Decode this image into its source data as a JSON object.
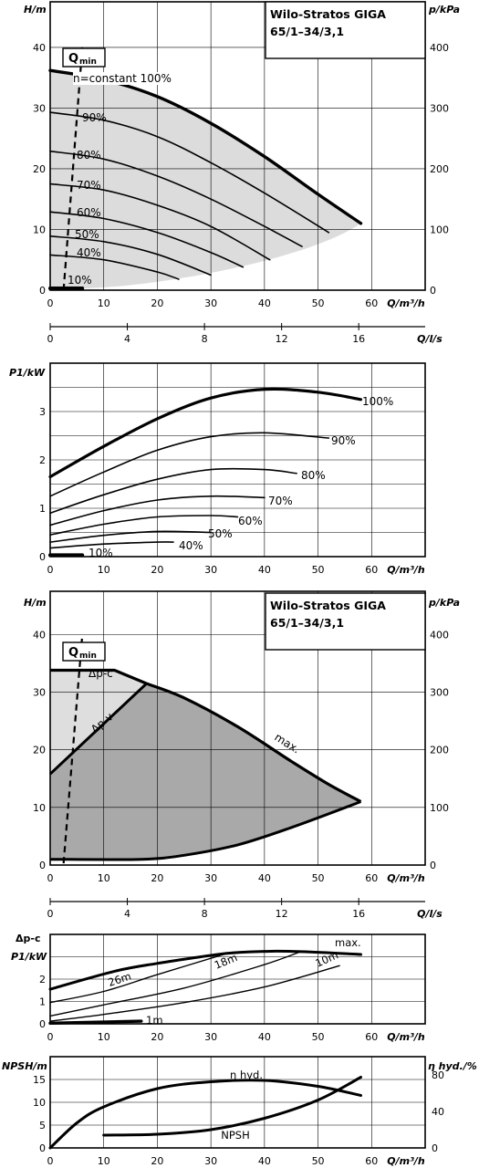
{
  "chart_data": [
    {
      "id": "c1",
      "type": "line",
      "title_line1": "Wilo-Stratos GIGA",
      "title_line2": "65/1–34/3,1",
      "ylabel": "H/m",
      "ylabel_right": "p/kPa",
      "xlabel": "Q/m³/h",
      "xlabel2": "Q/l/s",
      "qmin_label": "Q",
      "qmin_sub": "min",
      "xlim": [
        0,
        70
      ],
      "ylim": [
        0,
        47.5
      ],
      "x_ticks": [
        "0",
        "10",
        "20",
        "30",
        "40",
        "50",
        "60"
      ],
      "y_ticks": [
        "0",
        "10",
        "20",
        "30",
        "40"
      ],
      "y_right_ticks": [
        "0",
        "100",
        "200",
        "300",
        "400"
      ],
      "x2_ticks": [
        "0",
        "4",
        "8",
        "12",
        "16"
      ],
      "series": [
        {
          "label": "n=constant 100%",
          "x": [
            0,
            10,
            20,
            30,
            40,
            50,
            58
          ],
          "y": [
            36.2,
            34.7,
            31.9,
            27.5,
            22.0,
            15.8,
            11.0
          ]
        },
        {
          "label": "90%",
          "x": [
            0,
            10,
            20,
            30,
            40,
            52
          ],
          "y": [
            29.3,
            28.0,
            25.3,
            21.0,
            16.0,
            9.5
          ]
        },
        {
          "label": "80%",
          "x": [
            0,
            10,
            20,
            30,
            40,
            47
          ],
          "y": [
            22.9,
            21.6,
            18.8,
            15.0,
            10.5,
            7.2
          ]
        },
        {
          "label": "70%",
          "x": [
            0,
            10,
            20,
            30,
            41
          ],
          "y": [
            17.5,
            16.5,
            14.0,
            10.5,
            5.0
          ]
        },
        {
          "label": "60%",
          "x": [
            0,
            10,
            20,
            30,
            36
          ],
          "y": [
            12.9,
            11.8,
            9.5,
            6.2,
            3.8
          ]
        },
        {
          "label": "50%",
          "x": [
            0,
            10,
            20,
            30
          ],
          "y": [
            8.9,
            8.0,
            5.9,
            2.5
          ]
        },
        {
          "label": "40%",
          "x": [
            0,
            10,
            20,
            24
          ],
          "y": [
            5.8,
            5.0,
            3.0,
            1.8
          ]
        },
        {
          "label": "10%",
          "x": [
            0,
            6
          ],
          "y": [
            0.3,
            0.3
          ]
        }
      ]
    },
    {
      "id": "c2",
      "type": "line",
      "ylabel": "P1/kW",
      "xlabel": "Q/m³/h",
      "xlim": [
        0,
        70
      ],
      "ylim": [
        0,
        4
      ],
      "x_ticks": [
        "0",
        "10",
        "20",
        "30",
        "40",
        "50",
        "60"
      ],
      "y_ticks": [
        "0",
        "1",
        "2",
        "3"
      ],
      "series": [
        {
          "label": "100%",
          "x": [
            0,
            10,
            20,
            30,
            40,
            50,
            58
          ],
          "y": [
            1.65,
            2.28,
            2.85,
            3.28,
            3.46,
            3.4,
            3.25
          ]
        },
        {
          "label": "90%",
          "x": [
            0,
            10,
            20,
            30,
            40,
            52
          ],
          "y": [
            1.25,
            1.75,
            2.2,
            2.48,
            2.56,
            2.45
          ]
        },
        {
          "label": "80%",
          "x": [
            0,
            10,
            20,
            30,
            40,
            46
          ],
          "y": [
            0.9,
            1.28,
            1.6,
            1.8,
            1.8,
            1.72
          ]
        },
        {
          "label": "70%",
          "x": [
            0,
            10,
            20,
            30,
            40
          ],
          "y": [
            0.65,
            0.95,
            1.17,
            1.25,
            1.22
          ]
        },
        {
          "label": "60%",
          "x": [
            0,
            10,
            20,
            30,
            35
          ],
          "y": [
            0.45,
            0.67,
            0.82,
            0.85,
            0.82
          ]
        },
        {
          "label": "50%",
          "x": [
            0,
            10,
            20,
            30
          ],
          "y": [
            0.3,
            0.44,
            0.52,
            0.5
          ]
        },
        {
          "label": "40%",
          "x": [
            0,
            10,
            20,
            23
          ],
          "y": [
            0.18,
            0.26,
            0.3,
            0.3
          ]
        },
        {
          "label": "10%",
          "x": [
            0,
            6
          ],
          "y": [
            0.03,
            0.03
          ]
        }
      ]
    },
    {
      "id": "c3",
      "type": "area",
      "title_line1": "Wilo-Stratos GIGA",
      "title_line2": "65/1–34/3,1",
      "ylabel": "H/m",
      "ylabel_right": "p/kPa",
      "xlabel": "Q/m³/h",
      "xlabel2": "Q/l/s",
      "qmin_label": "Q",
      "qmin_sub": "min",
      "xlim": [
        0,
        70
      ],
      "ylim": [
        0,
        47.5
      ],
      "x_ticks": [
        "0",
        "10",
        "20",
        "30",
        "40",
        "50",
        "60"
      ],
      "y_ticks": [
        "0",
        "10",
        "20",
        "30",
        "40"
      ],
      "y_right_ticks": [
        "0",
        "100",
        "200",
        "300",
        "400"
      ],
      "x2_ticks": [
        "0",
        "4",
        "8",
        "12",
        "16"
      ],
      "labels": {
        "dpc": "Δp-c",
        "dpv": "Δp-v",
        "max": "max."
      },
      "max_curve": {
        "x": [
          0,
          12,
          18,
          25,
          35,
          45,
          52,
          58
        ],
        "y": [
          33.8,
          33.8,
          31.5,
          29.0,
          24.0,
          18.0,
          14.0,
          11.0
        ]
      },
      "dpv_line": {
        "x": [
          0,
          18
        ],
        "y": [
          15.8,
          31.5
        ]
      },
      "min_curve": {
        "x": [
          0,
          17,
          25,
          35,
          45,
          58
        ],
        "y": [
          1.0,
          1.0,
          1.7,
          3.5,
          6.5,
          11.0
        ]
      }
    },
    {
      "id": "c4",
      "type": "line",
      "ylabel1": "Δp-c",
      "ylabel": "P1/kW",
      "xlabel": "Q/m³/h",
      "xlim": [
        0,
        70
      ],
      "ylim": [
        0,
        4
      ],
      "x_ticks": [
        "0",
        "10",
        "20",
        "30",
        "40",
        "50",
        "60"
      ],
      "y_ticks": [
        "0",
        "1",
        "2"
      ],
      "series": [
        {
          "label": "max.",
          "x": [
            0,
            12,
            20,
            33,
            42,
            50,
            58
          ],
          "y": [
            1.55,
            2.35,
            2.7,
            3.15,
            3.25,
            3.2,
            3.1
          ]
        },
        {
          "label": "26m",
          "x": [
            0,
            10,
            20,
            33
          ],
          "y": [
            0.95,
            1.45,
            2.2,
            3.15
          ]
        },
        {
          "label": "18m",
          "x": [
            0,
            10,
            25,
            40,
            47
          ],
          "y": [
            0.35,
            0.85,
            1.6,
            2.65,
            3.25
          ]
        },
        {
          "label": "10m",
          "x": [
            0,
            10,
            25,
            40,
            54
          ],
          "y": [
            0.12,
            0.42,
            0.95,
            1.65,
            2.6
          ]
        },
        {
          "label": "1m",
          "x": [
            0,
            17
          ],
          "y": [
            0.03,
            0.12
          ]
        }
      ]
    },
    {
      "id": "c5",
      "type": "line",
      "ylabel": "NPSH/m",
      "ylabel_right": "η hyd./%",
      "xlabel": "Q/m³/h",
      "xlim": [
        0,
        70
      ],
      "ylim": [
        0,
        20
      ],
      "x_ticks": [
        "0",
        "10",
        "20",
        "30",
        "40",
        "50",
        "60"
      ],
      "y_ticks": [
        "0",
        "5",
        "10",
        "15"
      ],
      "y_right_ticks": [
        "0",
        "40",
        "80"
      ],
      "series": [
        {
          "label": "η hyd.",
          "x": [
            0,
            5,
            10,
            20,
            30,
            40,
            50,
            58
          ],
          "y": [
            0,
            5.5,
            9.0,
            13.0,
            14.5,
            14.8,
            13.5,
            11.5
          ]
        },
        {
          "label": "NPSH",
          "x": [
            10,
            20,
            30,
            40,
            50,
            58
          ],
          "y": [
            2.8,
            3.0,
            4.0,
            6.5,
            10.5,
            15.5
          ]
        }
      ]
    }
  ]
}
